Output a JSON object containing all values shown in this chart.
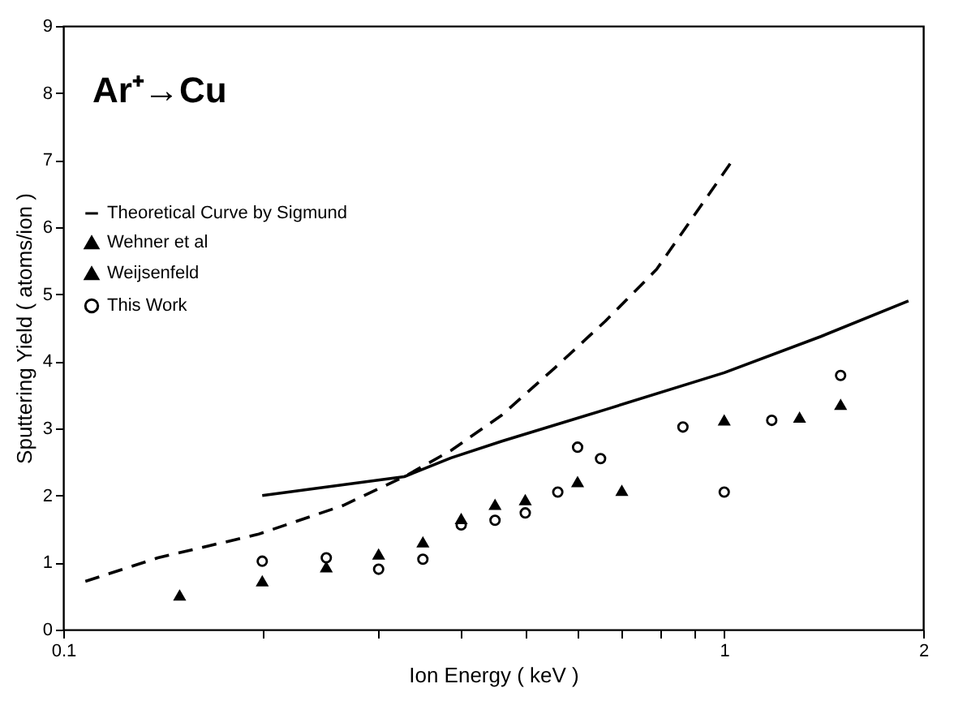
{
  "chart_data": {
    "type": "scatter",
    "xlabel": "Ion Energy ( keV )",
    "ylabel": "Sputtering Yield ( atoms/ion )",
    "annotations": [
      "Ar⁺→Cu"
    ],
    "log": "x",
    "grid": false,
    "legend": "top left",
    "xlim": [
      0.1,
      2
    ],
    "ylim": [
      0,
      9
    ],
    "xticks": [
      0.1,
      {
        "value": 0.2,
        "label": null
      },
      {
        "value": 0.3,
        "label": null
      },
      {
        "value": 0.4,
        "label": null
      },
      {
        "value": 0.5,
        "label": null
      },
      {
        "value": 0.6,
        "label": null
      },
      {
        "value": 0.7,
        "label": null
      },
      {
        "value": 0.8,
        "label": null
      },
      {
        "value": 0.9,
        "label": null
      },
      1,
      2
    ],
    "yticks": [
      0,
      1,
      2,
      3,
      4,
      5,
      6,
      7,
      8,
      9
    ],
    "series": [
      {
        "type": "line",
        "line_style": "dashed",
        "marker": "none",
        "color": "#000000",
        "x": [
          0.108,
          0.139,
          0.197,
          0.265,
          0.328,
          0.386,
          0.461,
          0.554,
          0.661,
          0.79,
          1.03
        ],
        "values": [
          0.72,
          1.07,
          1.42,
          1.85,
          2.28,
          2.67,
          3.2,
          3.9,
          4.6,
          5.37,
          7.0
        ]
      },
      {
        "type": "line",
        "name": "Theoretical Curve by Sigmund",
        "line_style": "solid",
        "marker": "none",
        "color": "#000000",
        "x": [
          0.2,
          0.265,
          0.328,
          0.386,
          0.461,
          0.661,
          1.0,
          1.4,
          1.9
        ],
        "values": [
          2.0,
          2.16,
          2.28,
          2.56,
          2.81,
          3.28,
          3.83,
          4.37,
          4.9
        ]
      },
      {
        "type": "scatter",
        "name": "Wehner et al",
        "marker": "triangle",
        "color": "#000000",
        "x": [
          0.15,
          0.2,
          0.25,
          0.3,
          0.35,
          0.4,
          0.45,
          0.5,
          0.6
        ],
        "values": [
          0.51,
          0.72,
          0.93,
          1.12,
          1.3,
          1.65,
          1.86,
          1.93,
          2.2
        ]
      },
      {
        "type": "scatter",
        "name": "Weijsenfeld",
        "marker": "triangle",
        "color": "#000000",
        "x": [
          0.7,
          1.0,
          1.3,
          1.5
        ],
        "values": [
          2.07,
          3.12,
          3.16,
          3.35
        ]
      },
      {
        "type": "scatter",
        "name": "This Work",
        "marker": "circle",
        "color": "#000000",
        "x": [
          0.2,
          0.25,
          0.3,
          0.35,
          0.4,
          0.45,
          0.5,
          0.56,
          0.6,
          0.65,
          0.866,
          1.0,
          1.18,
          1.5
        ],
        "values": [
          1.02,
          1.07,
          0.9,
          1.05,
          1.56,
          1.63,
          1.74,
          2.05,
          2.72,
          2.55,
          3.02,
          2.05,
          3.12,
          3.79
        ]
      }
    ]
  }
}
